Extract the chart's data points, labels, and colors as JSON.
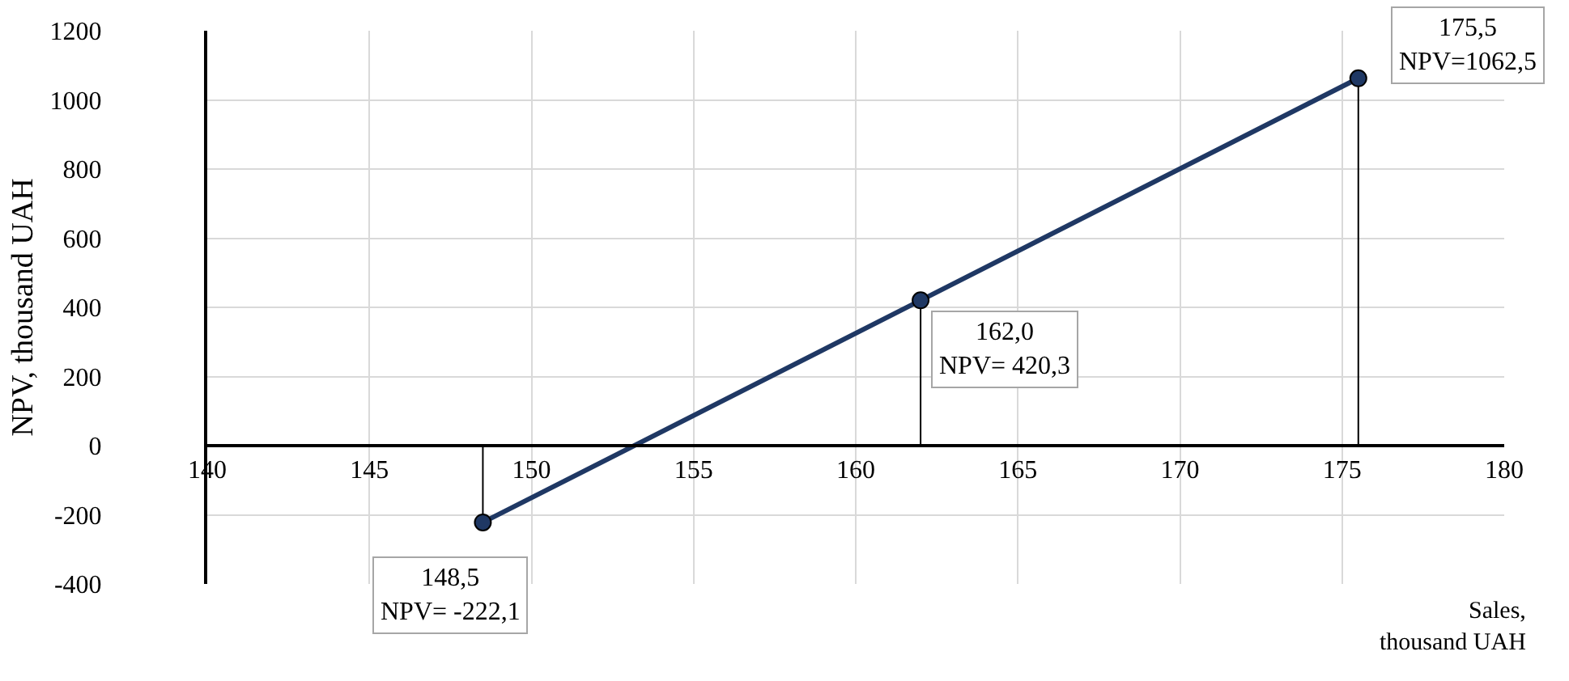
{
  "chart_data": {
    "type": "line",
    "xlabel": "Sales,\nthousand UAH",
    "ylabel": "NPV, thousand UAH",
    "x": [
      148.5,
      162.0,
      175.5
    ],
    "series": [
      {
        "color": "#1f3864",
        "values": [
          -222.1,
          420.3,
          1062.5
        ],
        "errors": [
          [
            -222.1,
            0
          ],
          [
            0,
            420.3
          ],
          [
            0,
            1062.5
          ]
        ]
      }
    ],
    "marker": "circle",
    "line_style": "solid",
    "grid": true,
    "xlim": [
      140,
      180
    ],
    "xticks": [
      140,
      145,
      150,
      155,
      160,
      165,
      170,
      175,
      180
    ],
    "ylim": [
      -400,
      1200
    ],
    "yticks": [
      -400,
      -200,
      0,
      200,
      400,
      600,
      800,
      1000,
      1200
    ],
    "annotations": [
      {
        "text": "148,5\nNPV= -222,1",
        "x": 148.5,
        "y": -222.1
      },
      {
        "text": "162,0\nNPV= 420,3",
        "x": 162.0,
        "y": 420.3
      },
      {
        "text": "175,5\nNPV=1062,5",
        "x": 175.5,
        "y": 1062.5
      }
    ]
  }
}
